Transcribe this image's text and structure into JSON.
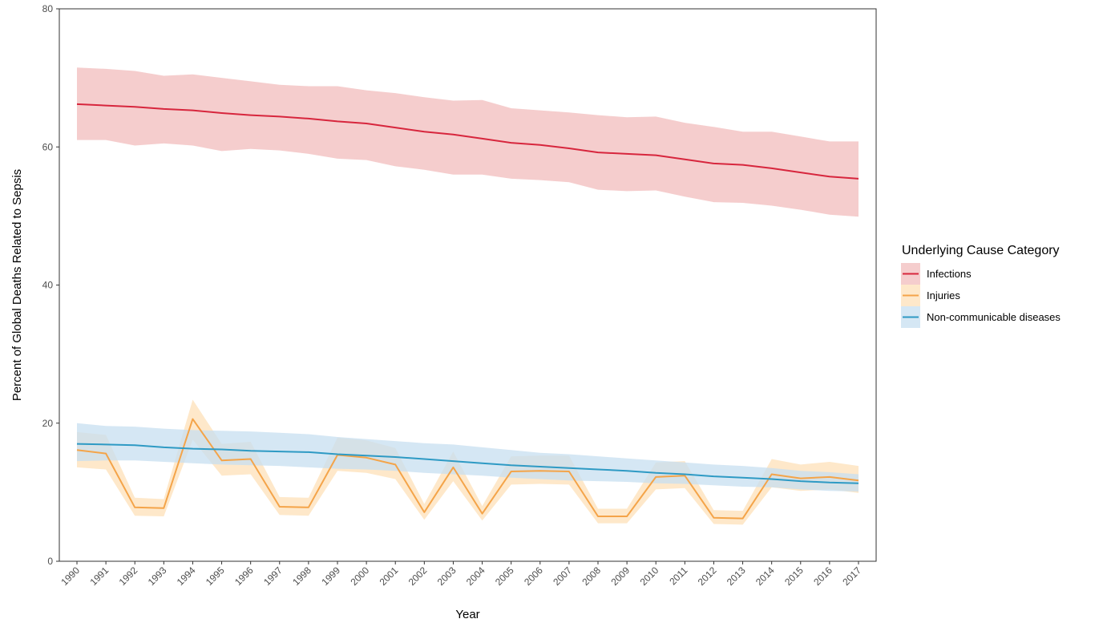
{
  "chart_data": {
    "type": "line",
    "xlabel": "Year",
    "ylabel": "Percent of Global Deaths Related to Sepsis",
    "ylim": [
      0,
      80
    ],
    "yticks": [
      0,
      20,
      40,
      60,
      80
    ],
    "x": [
      "1990",
      "1991",
      "1992",
      "1993",
      "1994",
      "1995",
      "1996",
      "1997",
      "1998",
      "1999",
      "2000",
      "2001",
      "2002",
      "2003",
      "2004",
      "2005",
      "2006",
      "2007",
      "2008",
      "2009",
      "2010",
      "2011",
      "2012",
      "2013",
      "2014",
      "2015",
      "2016",
      "2017"
    ],
    "grid": false,
    "legend": {
      "title": "Underlying Cause Category",
      "placement": "right"
    },
    "series": [
      {
        "name": "Infections",
        "color": "#d7263d",
        "band_color": "#f2bcbc",
        "values": [
          66.2,
          66.0,
          65.8,
          65.5,
          65.3,
          64.9,
          64.6,
          64.4,
          64.1,
          63.7,
          63.4,
          62.8,
          62.2,
          61.8,
          61.2,
          60.6,
          60.3,
          59.8,
          59.2,
          59.0,
          58.8,
          58.2,
          57.6,
          57.4,
          56.9,
          56.3,
          55.7,
          55.4
        ],
        "lower": [
          61.0,
          61.0,
          60.2,
          60.5,
          60.2,
          59.4,
          59.7,
          59.5,
          59.0,
          58.3,
          58.1,
          57.2,
          56.7,
          56.0,
          56.0,
          55.4,
          55.2,
          54.9,
          53.8,
          53.6,
          53.7,
          52.8,
          52.0,
          51.9,
          51.5,
          50.9,
          50.2,
          49.9
        ],
        "upper": [
          71.5,
          71.3,
          71.0,
          70.3,
          70.5,
          70.0,
          69.5,
          69.0,
          68.8,
          68.8,
          68.2,
          67.8,
          67.2,
          66.7,
          66.8,
          65.6,
          65.3,
          65.0,
          64.6,
          64.3,
          64.4,
          63.5,
          62.9,
          62.2,
          62.2,
          61.5,
          60.8,
          60.8
        ]
      },
      {
        "name": "Injuries",
        "color": "#f4a449",
        "band_color": "#fde0b8",
        "values": [
          16.1,
          15.6,
          7.8,
          7.7,
          20.6,
          14.6,
          14.8,
          7.9,
          7.8,
          15.4,
          15.0,
          14.0,
          7.1,
          13.6,
          6.9,
          13.0,
          13.1,
          13.0,
          6.5,
          6.5,
          12.2,
          12.4,
          6.3,
          6.2,
          12.6,
          12.0,
          12.2,
          11.7
        ],
        "lower": [
          13.6,
          13.3,
          6.6,
          6.5,
          17.6,
          12.4,
          12.6,
          6.7,
          6.6,
          13.1,
          12.8,
          11.9,
          6.0,
          11.6,
          5.9,
          11.1,
          11.2,
          11.1,
          5.5,
          5.5,
          10.4,
          10.6,
          5.4,
          5.3,
          10.7,
          10.2,
          10.4,
          9.9
        ],
        "upper": [
          18.7,
          18.3,
          9.2,
          9.0,
          23.4,
          17.0,
          17.3,
          9.3,
          9.2,
          17.9,
          17.5,
          16.4,
          8.3,
          15.9,
          8.0,
          15.2,
          15.3,
          15.3,
          7.6,
          7.6,
          14.3,
          14.5,
          7.4,
          7.3,
          14.8,
          14.0,
          14.4,
          13.8
        ]
      },
      {
        "name": "Non-communicable diseases",
        "color": "#2e9ac4",
        "band_color": "#c7dff0",
        "values": [
          17.0,
          16.9,
          16.8,
          16.5,
          16.3,
          16.2,
          16.0,
          15.9,
          15.8,
          15.5,
          15.3,
          15.1,
          14.8,
          14.5,
          14.2,
          13.9,
          13.7,
          13.5,
          13.3,
          13.1,
          12.8,
          12.6,
          12.3,
          12.1,
          11.9,
          11.6,
          11.4,
          11.3
        ],
        "lower": [
          14.5,
          14.6,
          14.6,
          14.4,
          14.2,
          14.0,
          13.9,
          13.8,
          13.6,
          13.4,
          13.3,
          13.1,
          12.8,
          12.6,
          12.4,
          12.1,
          11.9,
          11.7,
          11.6,
          11.5,
          11.3,
          11.2,
          11.0,
          10.8,
          10.7,
          10.4,
          10.2,
          10.1
        ],
        "upper": [
          20.0,
          19.6,
          19.5,
          19.2,
          19.0,
          18.9,
          18.8,
          18.6,
          18.4,
          18.0,
          17.7,
          17.4,
          17.1,
          16.9,
          16.5,
          16.1,
          15.7,
          15.5,
          15.2,
          14.9,
          14.6,
          14.3,
          14.0,
          13.8,
          13.5,
          13.1,
          12.9,
          12.6
        ]
      }
    ]
  }
}
